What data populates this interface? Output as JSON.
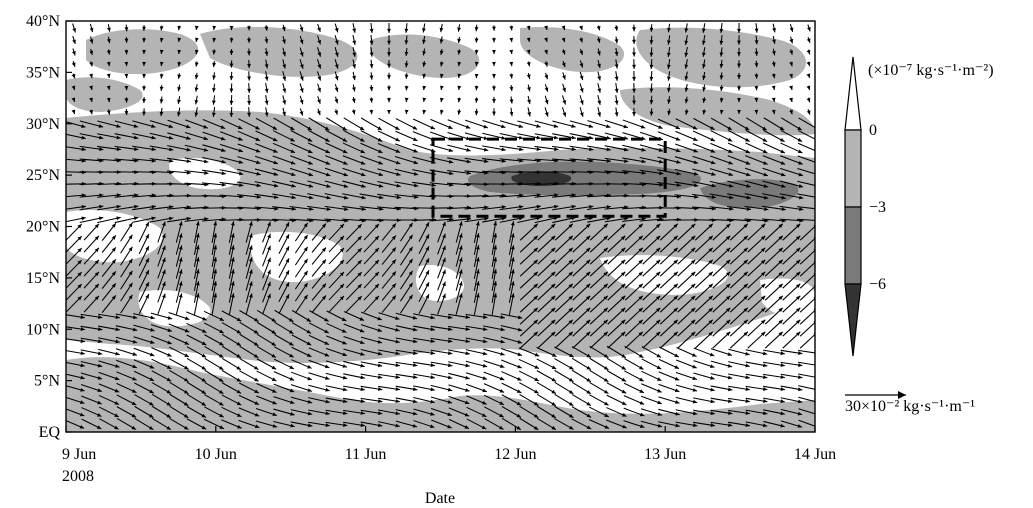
{
  "chart_data": {
    "type": "heatmap",
    "title": "",
    "xlabel": "Date",
    "ylabel": "",
    "x_ticks": [
      "9 Jun",
      "10 Jun",
      "11 Jun",
      "12 Jun",
      "13 Jun",
      "14 Jun"
    ],
    "x_year_label": "2008",
    "y_ticks": [
      "EQ",
      "5°N",
      "10°N",
      "15°N",
      "20°N",
      "25°N",
      "30°N",
      "35°N",
      "40°N"
    ],
    "xlim_days": [
      9,
      14
    ],
    "ylim_lat": [
      0,
      40
    ],
    "contour_levels": [
      0,
      -3,
      -6
    ],
    "contour_level_labels": [
      "0",
      "−3",
      "−6"
    ],
    "fill_colors": {
      "above_0": "#ffffff",
      "0_to_-3": "#b4b4b4",
      "-3_to_-6": "#7a7a7a",
      "below_-6": "#333333"
    },
    "shading_unit_text": "(×10⁻⁷ kg·s⁻¹·m⁻²)",
    "vector_reference": {
      "magnitude": 30,
      "unit_text": "30×10⁻² kg·s⁻¹·m⁻¹"
    },
    "highlight_box": {
      "day_start": 11.45,
      "day_end": 13.0,
      "lat_start": 21,
      "lat_end": 28.5,
      "style": "dashed"
    },
    "grid": false,
    "legend_position": "right"
  }
}
